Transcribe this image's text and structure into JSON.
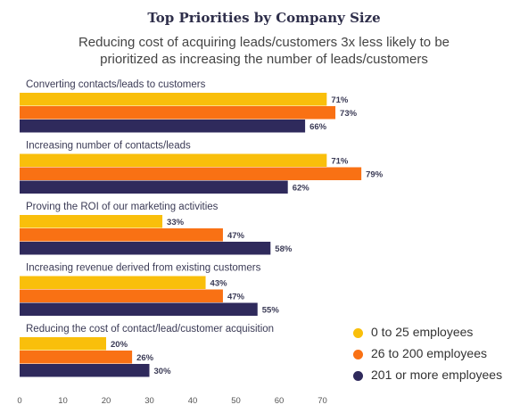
{
  "chart_data": {
    "type": "bar",
    "orientation": "horizontal",
    "title": "Top Priorities by Company Size",
    "subtitle_line1": "Reducing cost of acquiring leads/customers 3x less likely to be",
    "subtitle_line2": "prioritized as increasing the number of leads/customers",
    "categories": [
      "Converting contacts/leads to customers",
      "Increasing number of contacts/leads",
      "Proving the ROI of our marketing activities",
      "Increasing revenue derived from existing customers",
      "Reducing the cost of contact/lead/customer acquisition"
    ],
    "series": [
      {
        "name": "0 to 25 employees",
        "color": "#f9bf0b",
        "values": [
          71,
          71,
          33,
          43,
          20
        ]
      },
      {
        "name": "26 to 200 employees",
        "color": "#f97114",
        "values": [
          73,
          79,
          47,
          47,
          26
        ]
      },
      {
        "name": "201 or more employees",
        "color": "#2f2a5c",
        "values": [
          66,
          62,
          58,
          55,
          30
        ]
      }
    ],
    "value_suffix": "%",
    "xlim": [
      0,
      80
    ],
    "xticks": [
      0,
      10,
      20,
      30,
      40,
      50,
      60,
      70
    ],
    "grid": false,
    "legend_position": "bottom-right"
  }
}
